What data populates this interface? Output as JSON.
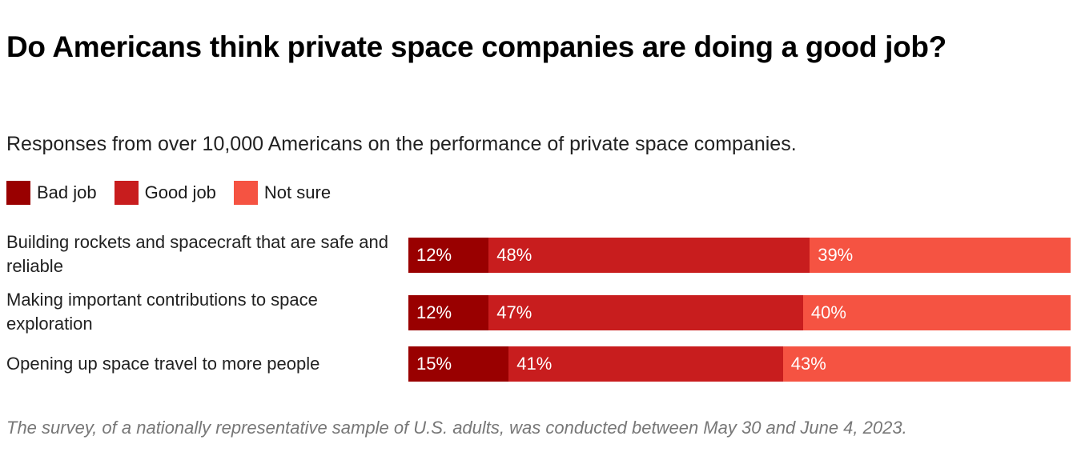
{
  "chart_data": {
    "type": "bar",
    "orientation": "horizontal",
    "stacked": true,
    "title": "Do Americans think private space companies are doing a good job?",
    "subtitle": "Responses from over 10,000 Americans on the performance of private space companies.",
    "note": "The survey, of a nationally representative sample of U.S. adults, was conducted between May 30 and June 4, 2023.",
    "legend_placement": "top-left",
    "grid": false,
    "categories": [
      "Building rockets and spacecraft that are safe and reliable",
      "Making important contributions to space exploration",
      "Opening up space travel to more people"
    ],
    "series": [
      {
        "name": "Bad job",
        "color": "#990000",
        "values": [
          12,
          12,
          15
        ]
      },
      {
        "name": "Good job",
        "color": "#c81d1e",
        "values": [
          48,
          47,
          41
        ]
      },
      {
        "name": "Not sure",
        "color": "#f55342",
        "values": [
          39,
          40,
          43
        ]
      }
    ],
    "value_suffix": "%"
  }
}
